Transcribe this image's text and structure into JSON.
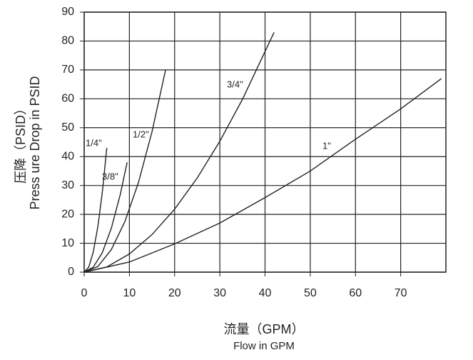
{
  "chart_data": {
    "type": "line",
    "xlabel": "流量（GPM）",
    "xlabel_en": "Flow in GPM",
    "ylabel": "压降（PSID）",
    "ylabel_en": "Press ure Drop in PSID",
    "xlim": [
      0,
      80
    ],
    "xticks": [
      0,
      10,
      20,
      30,
      40,
      50,
      60,
      70
    ],
    "ylim": [
      0,
      90
    ],
    "yticks": [
      0,
      10,
      20,
      30,
      40,
      50,
      60,
      70,
      80,
      90
    ],
    "grid": true,
    "series": [
      {
        "name": "1/4\"",
        "color": "#222222",
        "x": [
          0,
          1,
          2,
          3,
          4,
          5
        ],
        "values": [
          0,
          1.7,
          6.9,
          15.5,
          27.5,
          43
        ]
      },
      {
        "name": "3/8\"",
        "color": "#222222",
        "x": [
          0,
          2,
          4,
          6,
          8,
          9.5
        ],
        "values": [
          0,
          1.7,
          6.7,
          15.2,
          27,
          38
        ]
      },
      {
        "name": "1/2\"",
        "color": "#222222",
        "x": [
          0,
          3,
          6,
          9,
          12,
          15,
          18
        ],
        "values": [
          0,
          1.9,
          7.8,
          17.5,
          31,
          48.6,
          70
        ]
      },
      {
        "name": "3/4\"",
        "color": "#222222",
        "x": [
          0,
          5,
          10,
          15,
          20,
          25,
          30,
          35,
          42
        ],
        "values": [
          0,
          1.8,
          6.3,
          13,
          21.8,
          32.6,
          45.3,
          59.8,
          83
        ]
      },
      {
        "name": "1\"",
        "color": "#222222",
        "x": [
          0,
          10,
          20,
          30,
          40,
          50,
          60,
          70,
          79
        ],
        "values": [
          0,
          3.5,
          9.8,
          17,
          25.8,
          35,
          46,
          56.5,
          67
        ]
      }
    ]
  }
}
